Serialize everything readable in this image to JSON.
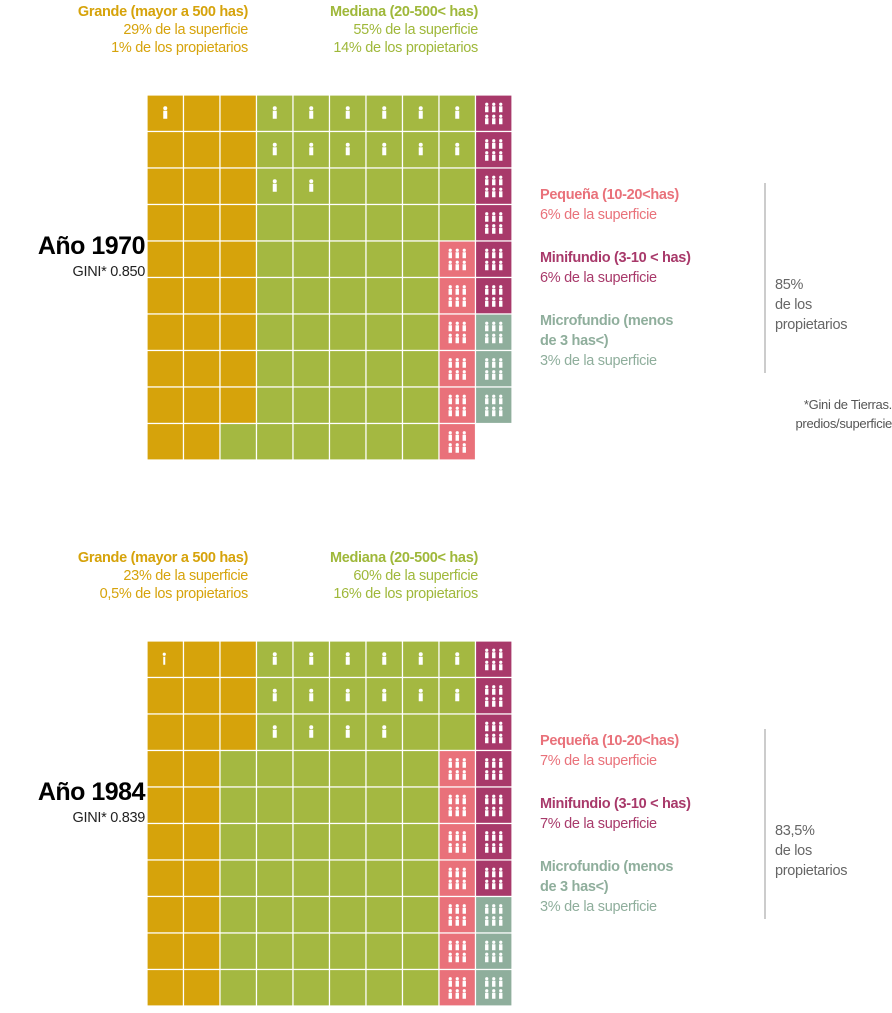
{
  "chart_data": [
    {
      "type": "waffle",
      "title": "Año 1970",
      "subtitle": "GINI* 0.850",
      "series": [
        {
          "name": "Grande (mayor a 500 has)",
          "color": "#d6a30b",
          "text_color": "#d6a30b",
          "surface": 29,
          "surface_label": "29% de la superficie",
          "owners": 1,
          "owners_label": "1% de los propietarios"
        },
        {
          "name": "Mediana (20-500< has)",
          "color": "#a4b841",
          "text_color": "#9fb83a",
          "surface": 55,
          "surface_label": "55% de la superficie",
          "owners": 14,
          "owners_label": "14% de los propietarios"
        },
        {
          "name": "Pequeña (10-20<has)",
          "color": "#e9717a",
          "text_color": "#e9717a",
          "surface": 6,
          "surface_label": "6% de la superficie"
        },
        {
          "name": "Minifundio (3-10 < has)",
          "color": "#a8396a",
          "text_color": "#a8396a",
          "surface": 6,
          "surface_label": "6% de la superficie"
        },
        {
          "name": "Microfundio (menos de 3 has<)",
          "color": "#8fae9c",
          "text_color": "#8fae9c",
          "surface": 3,
          "surface_label": "3% de la superficie"
        }
      ],
      "owners_total": {
        "value": 85,
        "label": "85%"
      },
      "owners_text": "de los propietarios",
      "note": "*Gini de Tierras. predios/superficie"
    },
    {
      "type": "waffle",
      "title": "Año 1984",
      "subtitle": "GINI* 0.839",
      "series": [
        {
          "name": "Grande (mayor a 500 has)",
          "color": "#d6a30b",
          "text_color": "#d6a30b",
          "surface": 23,
          "surface_label": "23% de la superficie",
          "owners": 0.5,
          "owners_label": "0,5% de los propietarios"
        },
        {
          "name": "Mediana (20-500< has)",
          "color": "#a4b841",
          "text_color": "#9fb83a",
          "surface": 60,
          "surface_label": "60% de la superficie",
          "owners": 16,
          "owners_label": "16% de los propietarios"
        },
        {
          "name": "Pequeña (10-20<has)",
          "color": "#e9717a",
          "text_color": "#e9717a",
          "surface": 7,
          "surface_label": "7% de la superficie"
        },
        {
          "name": "Minifundio (3-10 < has)",
          "color": "#a8396a",
          "text_color": "#a8396a",
          "surface": 7,
          "surface_label": "7% de la superficie"
        },
        {
          "name": "Microfundio (menos de 3 has<)",
          "color": "#8fae9c",
          "text_color": "#8fae9c",
          "surface": 3,
          "surface_label": "3% de la superficie"
        }
      ],
      "owners_total": {
        "value": 83.5,
        "label": "83,5%"
      },
      "owners_text": "de los propietarios"
    }
  ]
}
